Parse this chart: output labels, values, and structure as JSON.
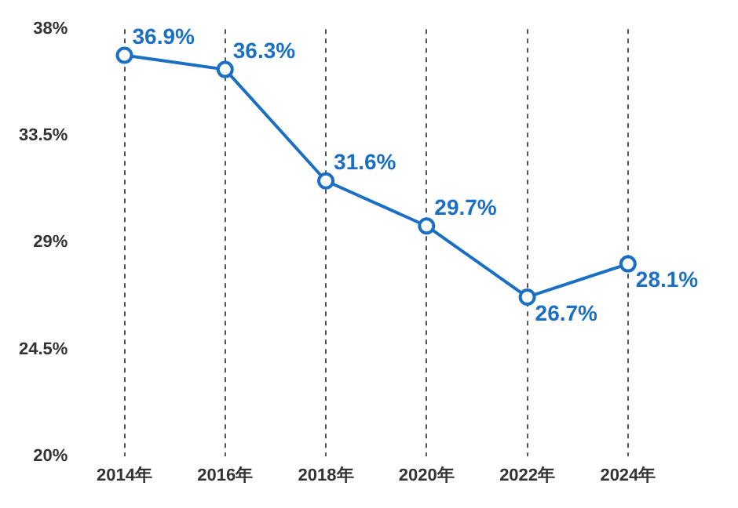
{
  "chart_data": {
    "type": "line",
    "categories": [
      "2014年",
      "2016年",
      "2018年",
      "2020年",
      "2022年",
      "2024年"
    ],
    "series": [
      {
        "color": "#1a6fc4",
        "values": [
          36.9,
          36.3,
          31.6,
          29.7,
          26.7,
          28.1
        ],
        "value_labels": [
          "36.9%",
          "36.3%",
          "31.6%",
          "29.7%",
          "26.7%",
          "28.1%"
        ]
      }
    ],
    "ylim": [
      20,
      38
    ],
    "yticks": [
      {
        "value": 20,
        "label": "20%"
      },
      {
        "value": 24.5,
        "label": "24.5%"
      },
      {
        "value": 29,
        "label": "29%"
      },
      {
        "value": 33.5,
        "label": "33.5%"
      },
      {
        "value": 38,
        "label": "38%"
      }
    ],
    "grid": "x",
    "marker": "circle",
    "line_style": "solid",
    "legend": false
  }
}
